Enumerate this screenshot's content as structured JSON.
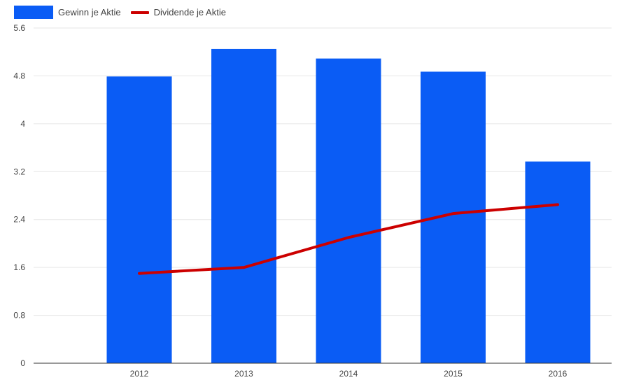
{
  "chart_data": {
    "type": "bar",
    "categories": [
      "2012",
      "2013",
      "2014",
      "2015",
      "2016"
    ],
    "series": [
      {
        "name": "Gewinn je Aktie",
        "type": "bar",
        "color": "#0a5cf5",
        "values": [
          4.79,
          5.25,
          5.09,
          4.87,
          3.37
        ]
      },
      {
        "name": "Dividende je Aktie",
        "type": "line",
        "color": "#cc0000",
        "values": [
          1.5,
          1.6,
          2.1,
          2.5,
          2.65
        ]
      }
    ],
    "ylim": [
      0,
      5.6
    ],
    "yticks": [
      "0",
      "0.8",
      "1.6",
      "2.4",
      "3.2",
      "4",
      "4.8",
      "5.6"
    ],
    "grid": true,
    "legend_position": "top-left"
  }
}
